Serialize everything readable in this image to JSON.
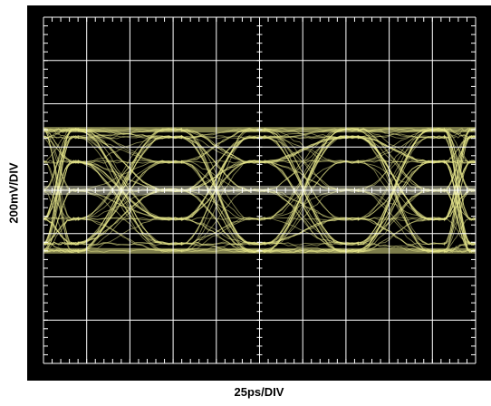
{
  "chart_data": {
    "type": "scatter",
    "subtype": "eye-diagram",
    "title": "",
    "xlabel": "25ps/DIV",
    "ylabel": "200mV/DIV",
    "x_divisions": 10,
    "y_divisions": 8,
    "grid": true,
    "x_per_div_ps": 25,
    "y_per_div_mV": 200,
    "xlim_ps": [
      0,
      250
    ],
    "ylim_mV": [
      -800,
      800
    ],
    "levels_mV": [
      -280,
      -246,
      -132,
      0,
      132,
      246,
      280
    ],
    "eye_crossings_ps": [
      20,
      80,
      128,
      182,
      232
    ],
    "colors": {
      "background": "#000000",
      "grid": "#ffffff",
      "trace": "#e6e68a"
    }
  }
}
